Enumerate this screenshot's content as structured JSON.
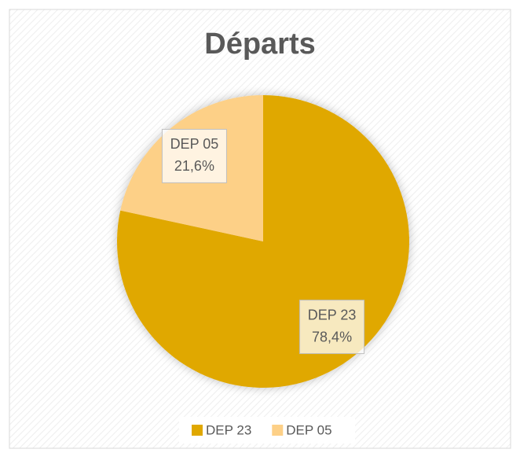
{
  "chart_data": {
    "type": "pie",
    "title": "Départs",
    "categories": [
      "DEP 23",
      "DEP 05"
    ],
    "values": [
      78.4,
      21.6
    ],
    "value_labels": [
      "78,4%",
      "21,6%"
    ],
    "colors": [
      "#e0a800",
      "#fdd087"
    ],
    "legend": "bottom"
  }
}
